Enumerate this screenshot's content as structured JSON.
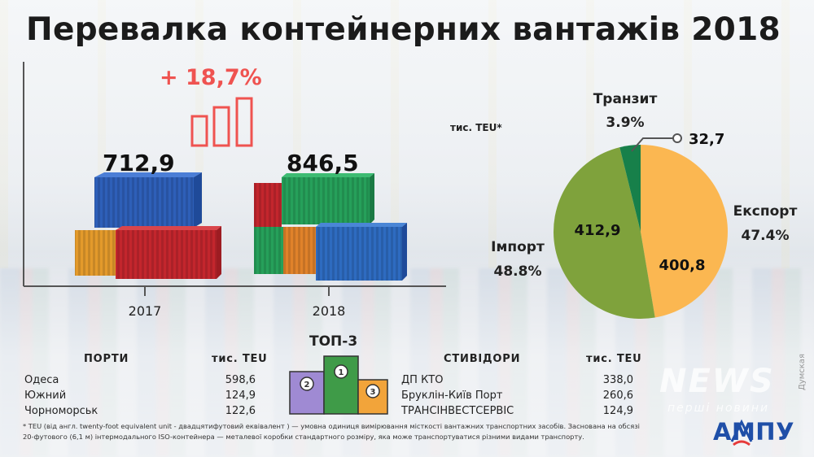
{
  "title": "Перевалка контейнерних вантажів 2018",
  "growth_label": "+ 18,7%",
  "years_chart": {
    "bars": [
      {
        "year": "2017",
        "label": "712,9",
        "value": 712.9
      },
      {
        "year": "2018",
        "label": "846,5",
        "value": 846.5
      }
    ]
  },
  "unit_label": "тис. TEU*",
  "chart_data": {
    "type": "pie",
    "slices": [
      {
        "name": "Експорт",
        "value_label": "400,8",
        "value": 400.8,
        "percent": "47.4%",
        "color": "#fbb751"
      },
      {
        "name": "Імпорт",
        "value_label": "412,9",
        "value": 412.9,
        "percent": "48.8%",
        "color": "#7fa23c"
      },
      {
        "name": "Транзит",
        "value_label": "32,7",
        "value": 32.7,
        "percent": "3.9%",
        "color": "#17804a"
      }
    ]
  },
  "ports": {
    "header": "ПОРТИ",
    "unit": "тис. TEU",
    "rows": [
      {
        "name": "Одеса",
        "value": "598,6"
      },
      {
        "name": "Южний",
        "value": "124,9"
      },
      {
        "name": "Чорноморськ",
        "value": "122,6"
      }
    ]
  },
  "top3": {
    "title": "ТОП-3",
    "places": [
      "1",
      "2",
      "3"
    ]
  },
  "stevedores": {
    "header": "СТИВІДОРИ",
    "unit": "тис. TEU",
    "rows": [
      {
        "name": "ДП КТО",
        "value": "338,0"
      },
      {
        "name": "Бруклін-Київ Порт",
        "value": "260,6"
      },
      {
        "name": "ТРАНСІНВЕСТСЕРВІС",
        "value": "124,9"
      }
    ]
  },
  "footnote": {
    "line1": "* TEU (від англ. twenty-foot equivalent unit - двадцятифутовий еквівалент ) — умовна одиниця вимірювання місткості вантажних транспортних засобів. Заснована на обсязі",
    "line2": "20-футового (6,1 м) інтермодального ISO-контейнера — металевої коробки стандартного розміру, яка може транспортуватися різними видами транспорту."
  },
  "logo_text": "АМПУ",
  "watermark": "NEWS",
  "watermark_sub": "перші новини",
  "side_watermark": "Думская",
  "colors": {
    "growth": "#ef5350",
    "export": "#fbb751",
    "import": "#7fa23c",
    "transit": "#17804a",
    "logo": "#1f4fa8"
  }
}
